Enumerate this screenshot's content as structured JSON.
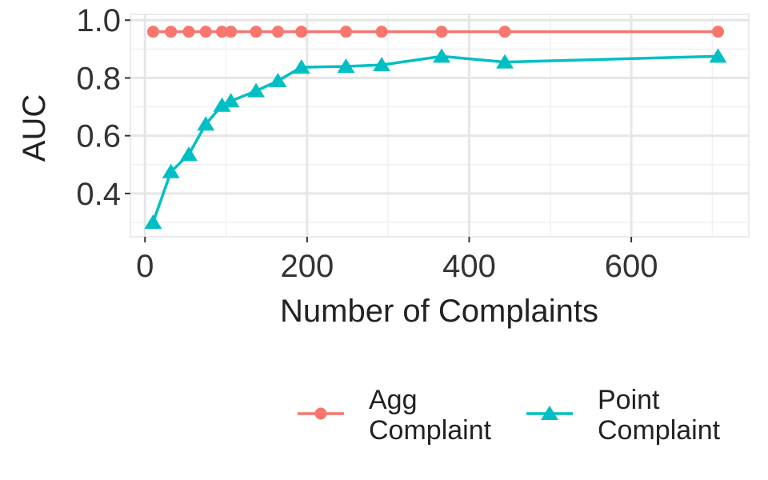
{
  "chart_data": {
    "type": "line",
    "xlabel": "Number of Complaints",
    "ylabel": "AUC",
    "xlim": [
      -18,
      745
    ],
    "ylim": [
      0.25,
      1.02
    ],
    "x_ticks": [
      0,
      200,
      400,
      600
    ],
    "x_tick_labels": [
      "0",
      "200",
      "400",
      "600"
    ],
    "y_ticks": [
      0.4,
      0.6,
      0.8,
      1.0
    ],
    "y_tick_labels": [
      "0.4",
      "0.6",
      "0.8",
      "1.0"
    ],
    "x_minor": [
      100,
      300,
      500,
      700
    ],
    "y_minor": [
      0.3,
      0.5,
      0.7,
      0.9
    ],
    "grid": true,
    "legend_position": "bottom",
    "series": [
      {
        "name_lines": [
          "Agg",
          "Complaint"
        ],
        "color": "#F8766D",
        "marker": "circle",
        "x": [
          10,
          32,
          54,
          75,
          95,
          106,
          137,
          164,
          193,
          248,
          292,
          366,
          444,
          707
        ],
        "y": [
          0.96,
          0.96,
          0.96,
          0.96,
          0.96,
          0.96,
          0.96,
          0.96,
          0.96,
          0.96,
          0.96,
          0.96,
          0.96,
          0.96
        ]
      },
      {
        "name_lines": [
          "Point",
          "Complaint"
        ],
        "color": "#00BFC4",
        "marker": "triangle",
        "x": [
          10,
          32,
          54,
          75,
          95,
          106,
          137,
          164,
          193,
          248,
          292,
          366,
          444,
          707
        ],
        "y": [
          0.3,
          0.475,
          0.535,
          0.64,
          0.705,
          0.72,
          0.755,
          0.79,
          0.837,
          0.84,
          0.845,
          0.875,
          0.855,
          0.875
        ]
      }
    ]
  }
}
